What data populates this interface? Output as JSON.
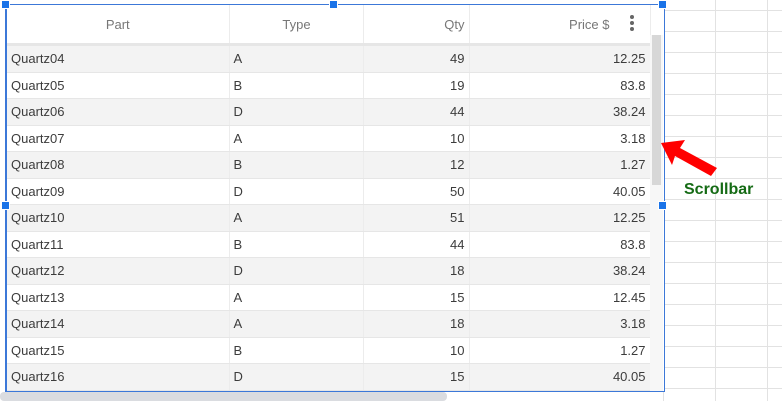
{
  "table": {
    "columns": [
      "Part",
      "Type",
      "Qty",
      "Price $"
    ],
    "rows": [
      [
        "Quartz04",
        "A",
        "49",
        "12.25"
      ],
      [
        "Quartz05",
        "B",
        "19",
        "83.8"
      ],
      [
        "Quartz06",
        "D",
        "44",
        "38.24"
      ],
      [
        "Quartz07",
        "A",
        "10",
        "3.18"
      ],
      [
        "Quartz08",
        "B",
        "12",
        "1.27"
      ],
      [
        "Quartz09",
        "D",
        "50",
        "40.05"
      ],
      [
        "Quartz10",
        "A",
        "51",
        "12.25"
      ],
      [
        "Quartz11",
        "B",
        "44",
        "83.8"
      ],
      [
        "Quartz12",
        "D",
        "18",
        "38.24"
      ],
      [
        "Quartz13",
        "A",
        "15",
        "12.45"
      ],
      [
        "Quartz14",
        "A",
        "18",
        "3.18"
      ],
      [
        "Quartz15",
        "B",
        "10",
        "1.27"
      ],
      [
        "Quartz16",
        "D",
        "15",
        "40.05"
      ]
    ]
  },
  "annotation": {
    "label": "Scrollbar",
    "arrow_color": "#ff0000",
    "label_color": "#156b15"
  },
  "icons": {
    "menu": "more-vert-icon"
  },
  "accent": "#3c78d8"
}
